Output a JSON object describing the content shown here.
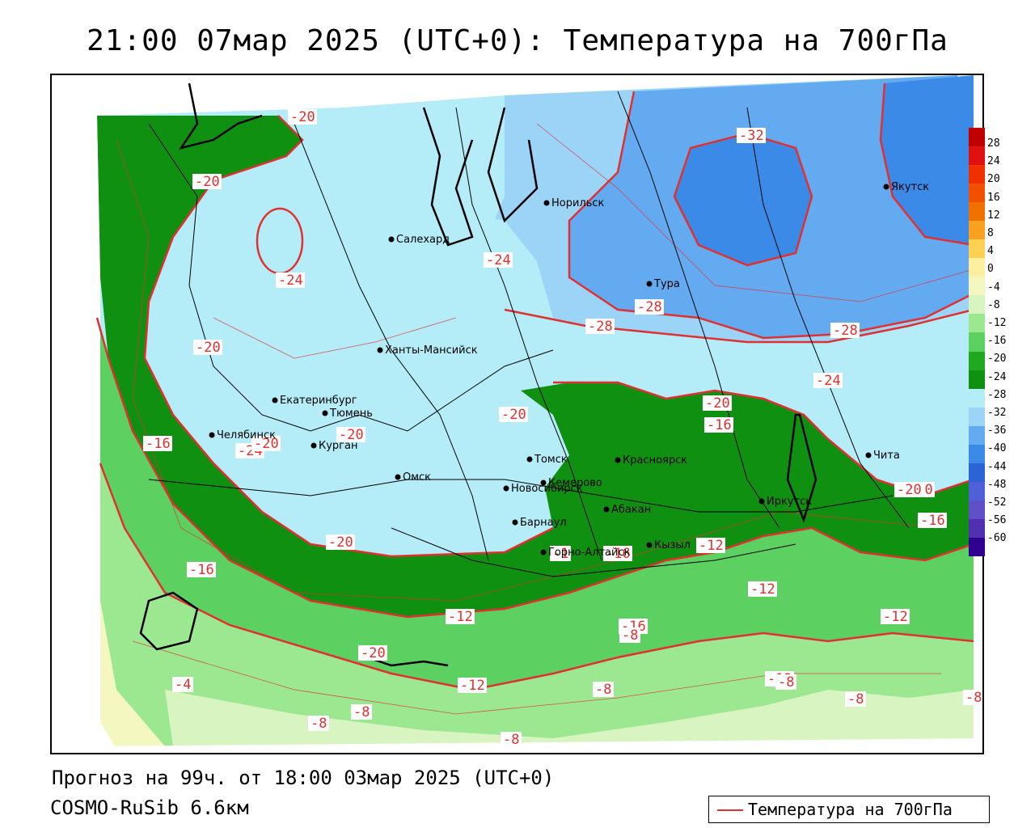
{
  "title": "21:00 07мар 2025 (UTC+0): Температура на 700гПа",
  "footer": {
    "forecast": "Прогноз на 99ч. от 18:00 03мар 2025 (UTC+0)",
    "model": "COSMO-RuSib 6.6км"
  },
  "legend": {
    "label": "Температура на 700гПа",
    "line_color": "#e03030"
  },
  "colorbar": {
    "ticks": [
      "28",
      "24",
      "20",
      "16",
      "12",
      "8",
      "4",
      "0",
      "-4",
      "-8",
      "-12",
      "-16",
      "-20",
      "-24",
      "-28",
      "-32",
      "-36",
      "-40",
      "-44",
      "-48",
      "-52",
      "-56",
      "-60"
    ],
    "colors": [
      "#c00000",
      "#e01010",
      "#f03000",
      "#f05000",
      "#f07000",
      "#f8a020",
      "#fcd050",
      "#fcf0a0",
      "#f4f8c0",
      "#d8f4c0",
      "#9ce890",
      "#5cd060",
      "#20a820",
      "#109010",
      "#b4ecf8",
      "#9cd4f8",
      "#64aaf0",
      "#3c8ae8",
      "#2c64d8",
      "#5060d8",
      "#6050c8",
      "#5030b0",
      "#300090"
    ]
  },
  "contour_labels": [
    "-20",
    "-20",
    "-24",
    "-24",
    "-28",
    "-28",
    "-32",
    "-28",
    "-24",
    "-24",
    "-20",
    "-20",
    "-20",
    "-20",
    "-20",
    "-16",
    "-20",
    "-20",
    "-16",
    "-16",
    "-16",
    "-20",
    "-12",
    "-12",
    "-16",
    "-12",
    "-8",
    "-12",
    "-8",
    "-12",
    "-12",
    "-8",
    "-8",
    "-4",
    "-8",
    "-8",
    "-8",
    "-8",
    "-1",
    "-16",
    "-20"
  ],
  "cities": [
    "Норильск",
    "Якутск",
    "Салехард",
    "Тура",
    "Ханты-Мансийск",
    "Екатеринбург",
    "Тюмень",
    "Челябинск",
    "Курган",
    "Омск",
    "Новосибирск",
    "Томск",
    "Кемерово",
    "Красноярск",
    "Барнаул",
    "Абакан",
    "Горно-Алтайск",
    "Кызыл",
    "Иркутск",
    "Чита"
  ]
}
